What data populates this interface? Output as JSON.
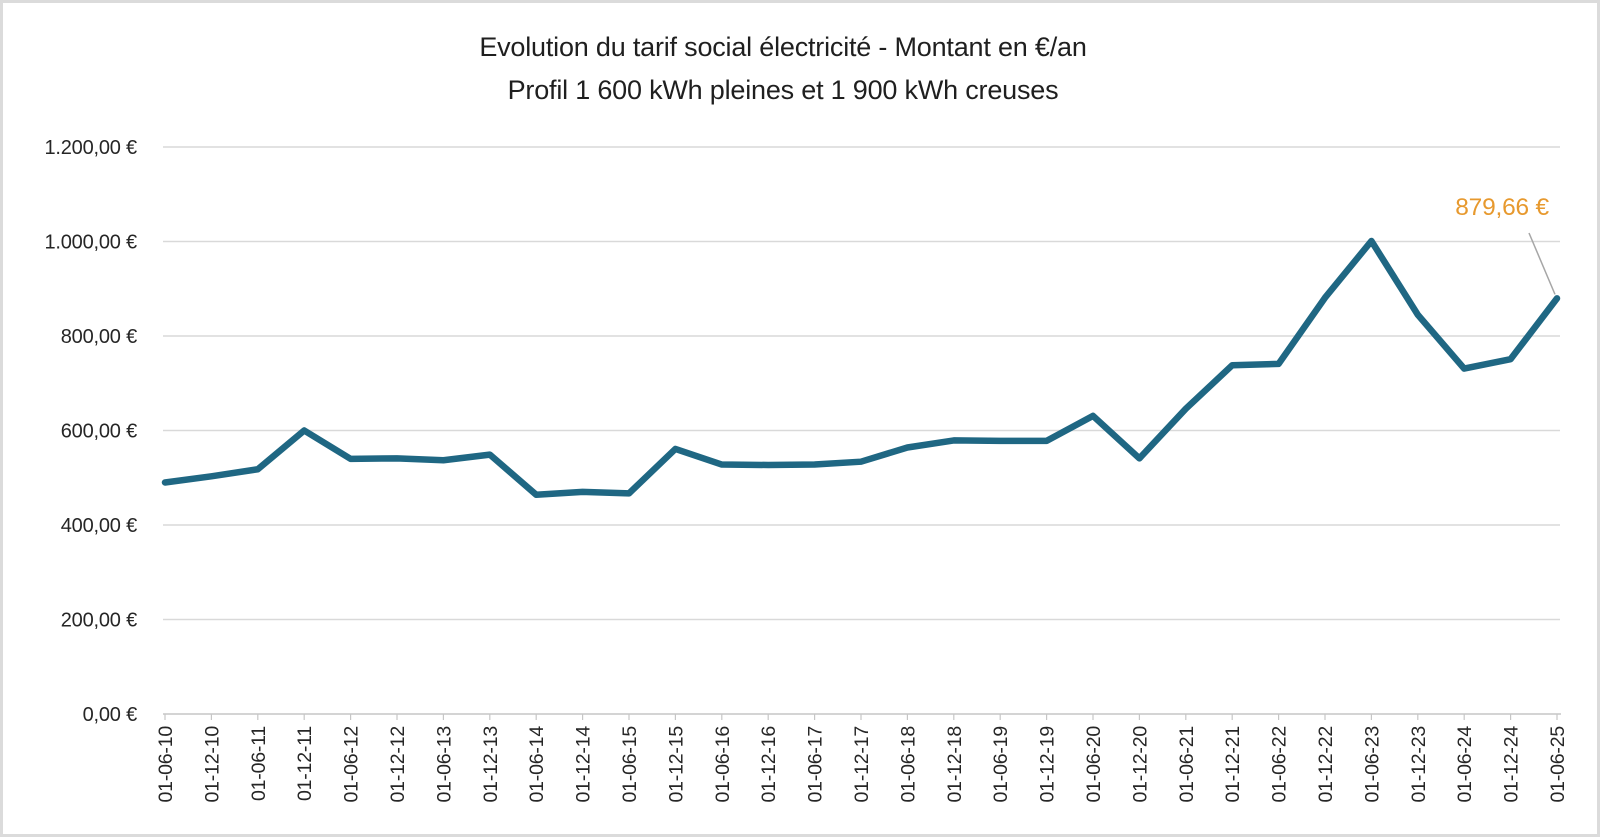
{
  "window": {
    "background": "#ffffff",
    "frame_border_color": "#dbdbdb"
  },
  "chart_data": {
    "type": "line",
    "title": "Evolution du tarif social électricité - Montant en €/an",
    "subtitle": "Profil 1 600 kWh pleines et 1 900 kWh creuses",
    "categories": [
      "01-06-10",
      "01-12-10",
      "01-06-11",
      "01-12-11",
      "01-06-12",
      "01-12-12",
      "01-06-13",
      "01-12-13",
      "01-06-14",
      "01-12-14",
      "01-06-15",
      "01-12-15",
      "01-06-16",
      "01-12-16",
      "01-06-17",
      "01-12-17",
      "01-06-18",
      "01-12-18",
      "01-06-19",
      "01-12-19",
      "01-06-20",
      "01-12-20",
      "01-06-21",
      "01-12-21",
      "01-06-22",
      "01-12-22",
      "01-06-23",
      "01-12-23",
      "01-06-24",
      "01-12-24",
      "01-06-25"
    ],
    "values": [
      490,
      503,
      518,
      600,
      540,
      541,
      537,
      549,
      464,
      470,
      467,
      561,
      528,
      527,
      528,
      534,
      564,
      579,
      578,
      578,
      631,
      541,
      646,
      738,
      741,
      881,
      1001,
      845,
      731,
      751,
      879.66
    ],
    "ylim": [
      0,
      1200
    ],
    "y_ticks": [
      {
        "v": 0,
        "label": "0,00 €"
      },
      {
        "v": 200,
        "label": "200,00 €"
      },
      {
        "v": 400,
        "label": "400,00 €"
      },
      {
        "v": 600,
        "label": "600,00 €"
      },
      {
        "v": 800,
        "label": "800,00 €"
      },
      {
        "v": 1000,
        "label": "1.000,00 €"
      },
      {
        "v": 1200,
        "label": "1.200,00 €"
      }
    ],
    "grid": "horizontal",
    "legend": "none",
    "annotation": {
      "text": "879,66 €",
      "target_category": "01-06-25",
      "color": "#E7992E"
    },
    "colors": {
      "line": "#1F6783",
      "gridline": "#D9D9D9",
      "axis": "#C6C6C6",
      "tick_text": "#262626",
      "leader": "#A6A6A6"
    }
  }
}
